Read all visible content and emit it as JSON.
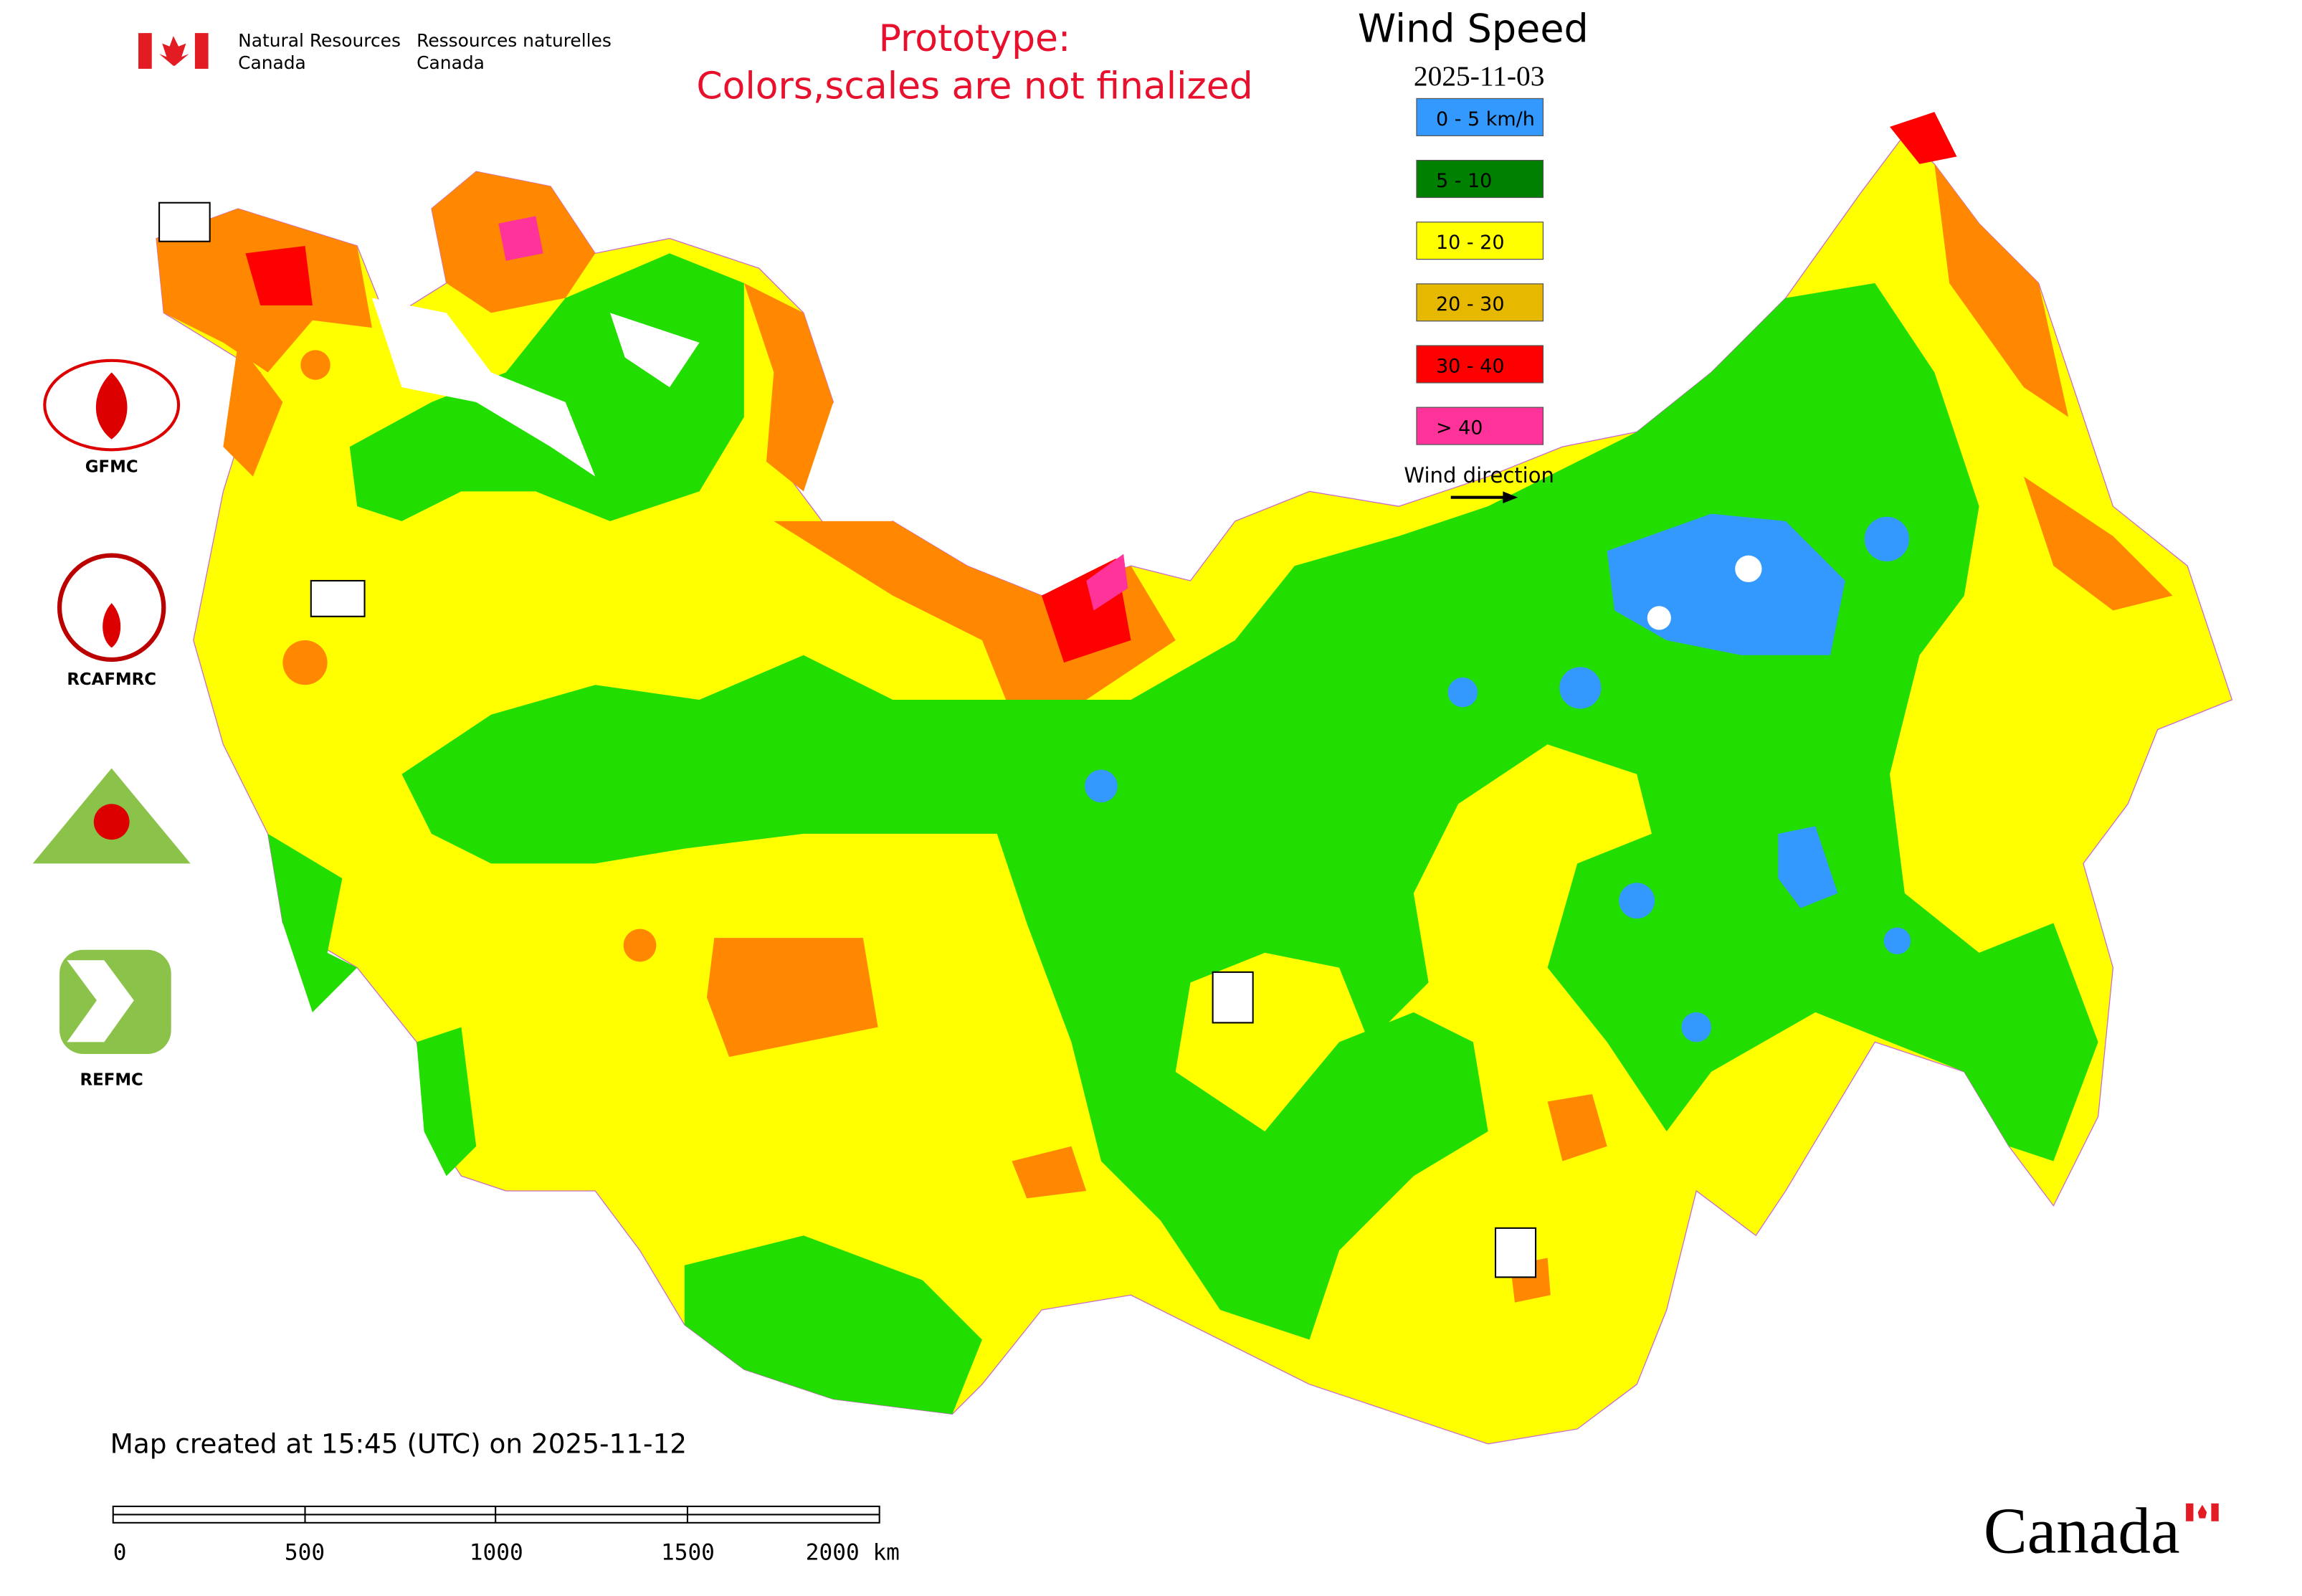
{
  "header": {
    "agency_en": {
      "line1": "Natural Resources",
      "line2": "Canada"
    },
    "agency_fr": {
      "line1": "Ressources naturelles",
      "line2": "Canada"
    },
    "notice": {
      "line1": "Prototype:",
      "line2": "Colors,scales are not finalized"
    }
  },
  "legend": {
    "title": "Wind Speed",
    "date": "2025-11-03",
    "items": [
      {
        "label": "0 - 5 km/h",
        "color": "#3399ff"
      },
      {
        "label": "5 - 10",
        "color": "#008000"
      },
      {
        "label": "10 - 20",
        "color": "#ffff00"
      },
      {
        "label": "20 - 30",
        "color": "#e6b800"
      },
      {
        "label": "30 - 40",
        "color": "#ff0000"
      },
      {
        "label": "> 40",
        "color": "#ff3399"
      }
    ],
    "direction_label": "Wind direction"
  },
  "logos": [
    {
      "label": "GFMC"
    },
    {
      "label": "RCAFMRC"
    },
    {
      "label": "REFMC"
    }
  ],
  "footer": "Map created at 15:45 (UTC) on 2025-11-12",
  "scale_bar": {
    "labels": [
      "0",
      "500",
      "1000",
      "1500",
      "2000 km"
    ]
  },
  "wordmark": "Canada"
}
